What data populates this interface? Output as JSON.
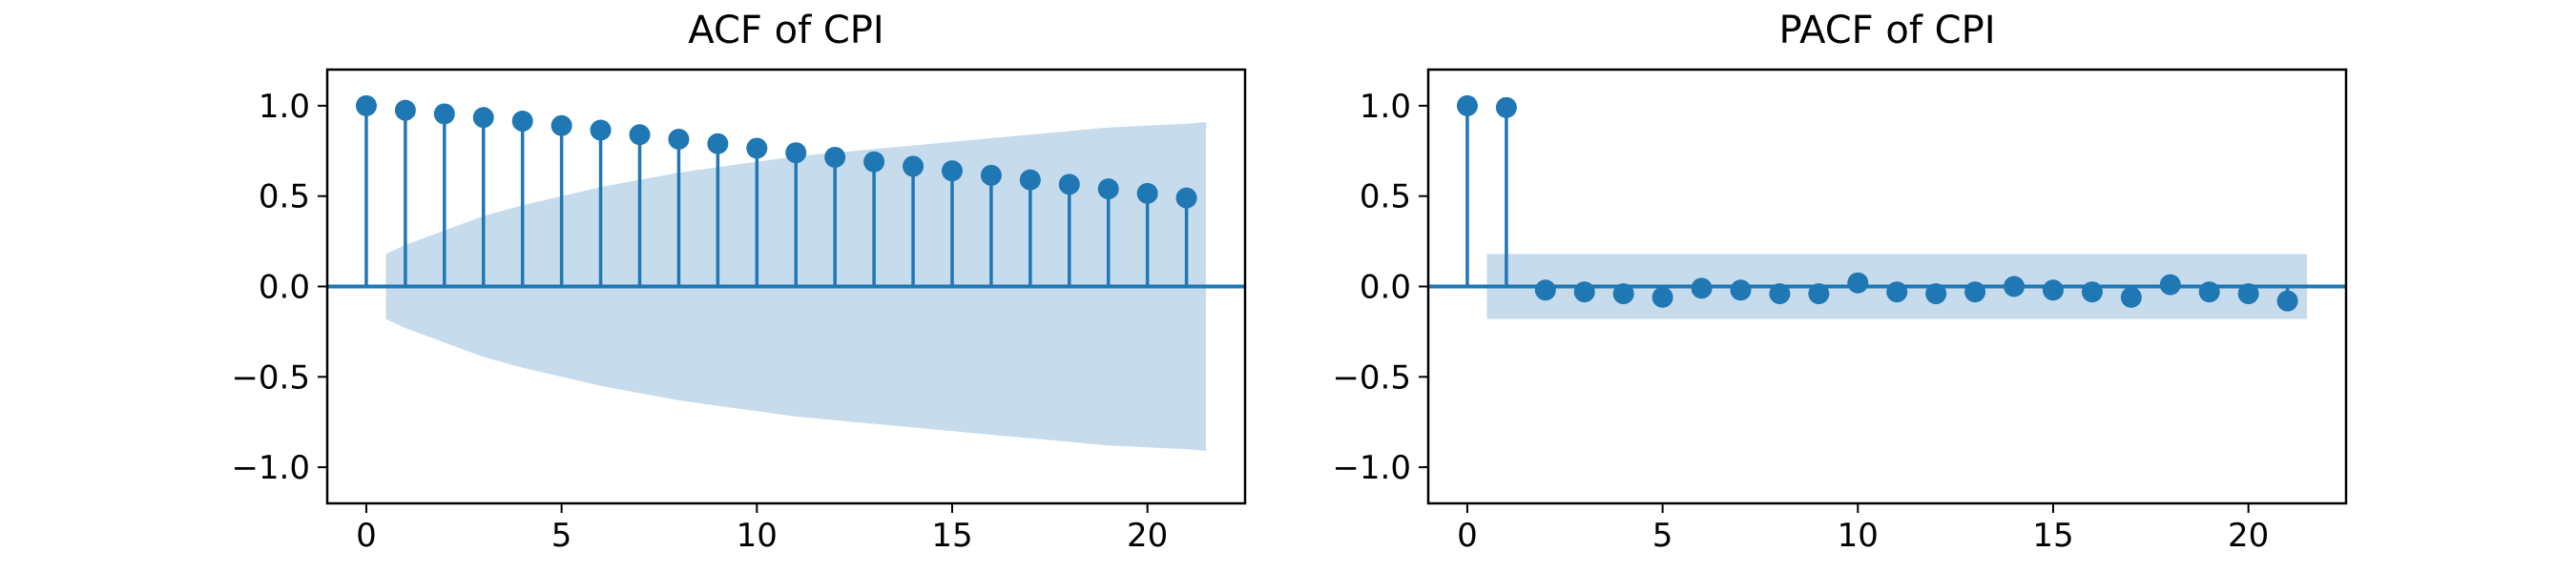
{
  "figure": {
    "colors": {
      "stem": "#1f77b4",
      "band": "#c6dbec",
      "axis": "#000000"
    }
  },
  "chart_data": [
    {
      "type": "stem",
      "title": "ACF of CPI",
      "x": [
        0,
        1,
        2,
        3,
        4,
        5,
        6,
        7,
        8,
        9,
        10,
        11,
        12,
        13,
        14,
        15,
        16,
        17,
        18,
        19,
        20,
        21
      ],
      "values": [
        1.0,
        0.975,
        0.955,
        0.935,
        0.915,
        0.89,
        0.865,
        0.84,
        0.815,
        0.79,
        0.765,
        0.74,
        0.715,
        0.69,
        0.665,
        0.64,
        0.615,
        0.59,
        0.565,
        0.54,
        0.515,
        0.49
      ],
      "confidence_band": {
        "x": [
          0.5,
          1,
          2,
          3,
          4,
          5,
          6,
          7,
          8,
          9,
          10,
          11,
          12,
          13,
          14,
          15,
          16,
          17,
          18,
          19,
          20,
          21,
          21.5
        ],
        "upper": [
          0.18,
          0.23,
          0.31,
          0.39,
          0.45,
          0.5,
          0.55,
          0.59,
          0.63,
          0.66,
          0.69,
          0.72,
          0.74,
          0.76,
          0.78,
          0.8,
          0.82,
          0.84,
          0.86,
          0.88,
          0.89,
          0.9,
          0.91
        ]
      },
      "xticks": [
        "0",
        "5",
        "10",
        "15",
        "20"
      ],
      "yticks": [
        "1.0",
        "0.5",
        "0.0",
        "−0.5",
        "−1.0"
      ],
      "xlim": [
        -1,
        22.5
      ],
      "ylim": [
        -1.2,
        1.2
      ],
      "grid": false
    },
    {
      "type": "stem",
      "title": "PACF of CPI",
      "x": [
        0,
        1,
        2,
        3,
        4,
        5,
        6,
        7,
        8,
        9,
        10,
        11,
        12,
        13,
        14,
        15,
        16,
        17,
        18,
        19,
        20,
        21
      ],
      "values": [
        1.0,
        0.99,
        -0.02,
        -0.03,
        -0.04,
        -0.06,
        -0.01,
        -0.02,
        -0.04,
        -0.04,
        0.02,
        -0.03,
        -0.04,
        -0.03,
        0.0,
        -0.02,
        -0.03,
        -0.06,
        0.01,
        -0.03,
        -0.04,
        -0.08
      ],
      "confidence_band": {
        "x": [
          0.5,
          21.5
        ],
        "upper": [
          0.18,
          0.18
        ]
      },
      "xticks": [
        "0",
        "5",
        "10",
        "15",
        "20"
      ],
      "yticks": [
        "1.0",
        "0.5",
        "0.0",
        "−0.5",
        "−1.0"
      ],
      "xlim": [
        -1,
        22.5
      ],
      "ylim": [
        -1.2,
        1.2
      ],
      "grid": false
    }
  ]
}
